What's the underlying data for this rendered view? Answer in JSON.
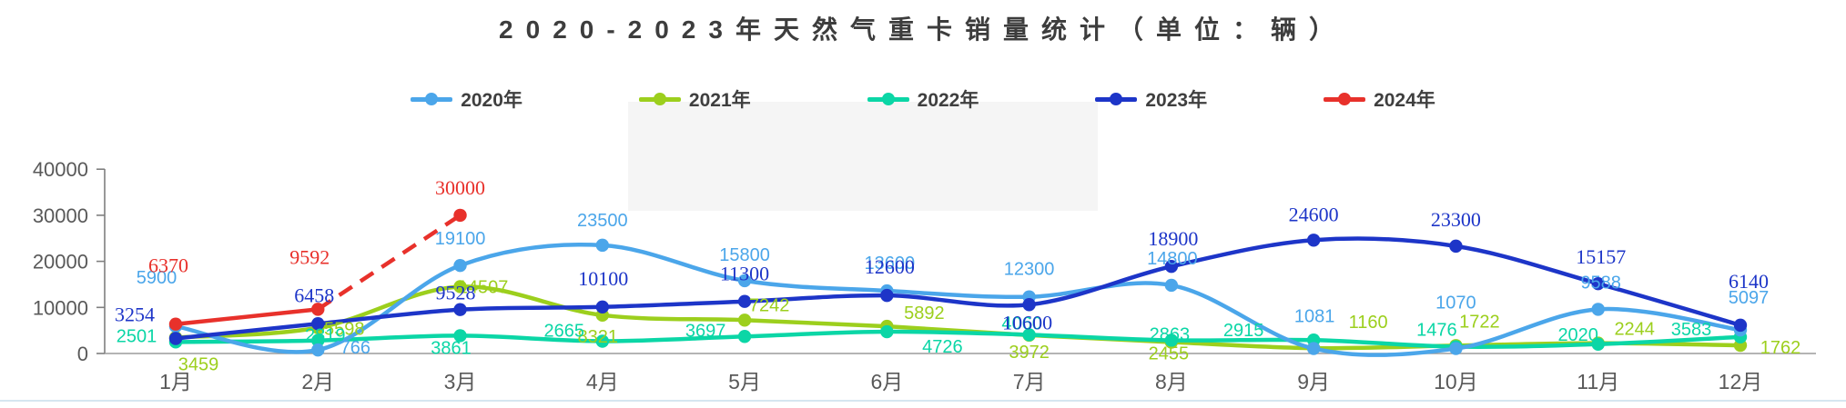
{
  "title": "2020-2023年天然气重卡销量统计（单位：辆）",
  "chart_data": {
    "type": "line",
    "categories": [
      "1月",
      "2月",
      "3月",
      "4月",
      "5月",
      "6月",
      "7月",
      "8月",
      "9月",
      "10月",
      "11月",
      "12月"
    ],
    "yticks": [
      0,
      10000,
      20000,
      30000,
      40000
    ],
    "ylim": [
      0,
      40000
    ],
    "grid": false,
    "legend_position": "top",
    "series": [
      {
        "name": "2020年",
        "color": "#4ba6ea",
        "style": "solid",
        "values": [
          5900,
          766,
          19100,
          23500,
          15800,
          13600,
          12300,
          14800,
          1081,
          1070,
          9588,
          5097
        ]
      },
      {
        "name": "2021年",
        "color": "#9ccf1d",
        "style": "solid",
        "values": [
          3459,
          5598,
          14507,
          8321,
          7242,
          5892,
          3972,
          2455,
          1160,
          1722,
          2244,
          1762
        ]
      },
      {
        "name": "2022年",
        "color": "#0bd6a6",
        "style": "solid",
        "values": [
          2501,
          2819,
          3861,
          2665,
          3697,
          4726,
          4060,
          2863,
          2915,
          1476,
          2020,
          3583
        ]
      },
      {
        "name": "2023年",
        "color": "#1d35c8",
        "style": "solid",
        "values": [
          3254,
          6458,
          9528,
          10100,
          11300,
          12600,
          10600,
          18900,
          24600,
          23300,
          15157,
          6140
        ]
      },
      {
        "name": "2024年",
        "color": "#e8312b",
        "style": "dashed-tail",
        "values": [
          6370,
          9592,
          30000,
          null,
          null,
          null,
          null,
          null,
          null,
          null,
          null,
          null
        ]
      }
    ]
  },
  "axis_color": "#595959"
}
